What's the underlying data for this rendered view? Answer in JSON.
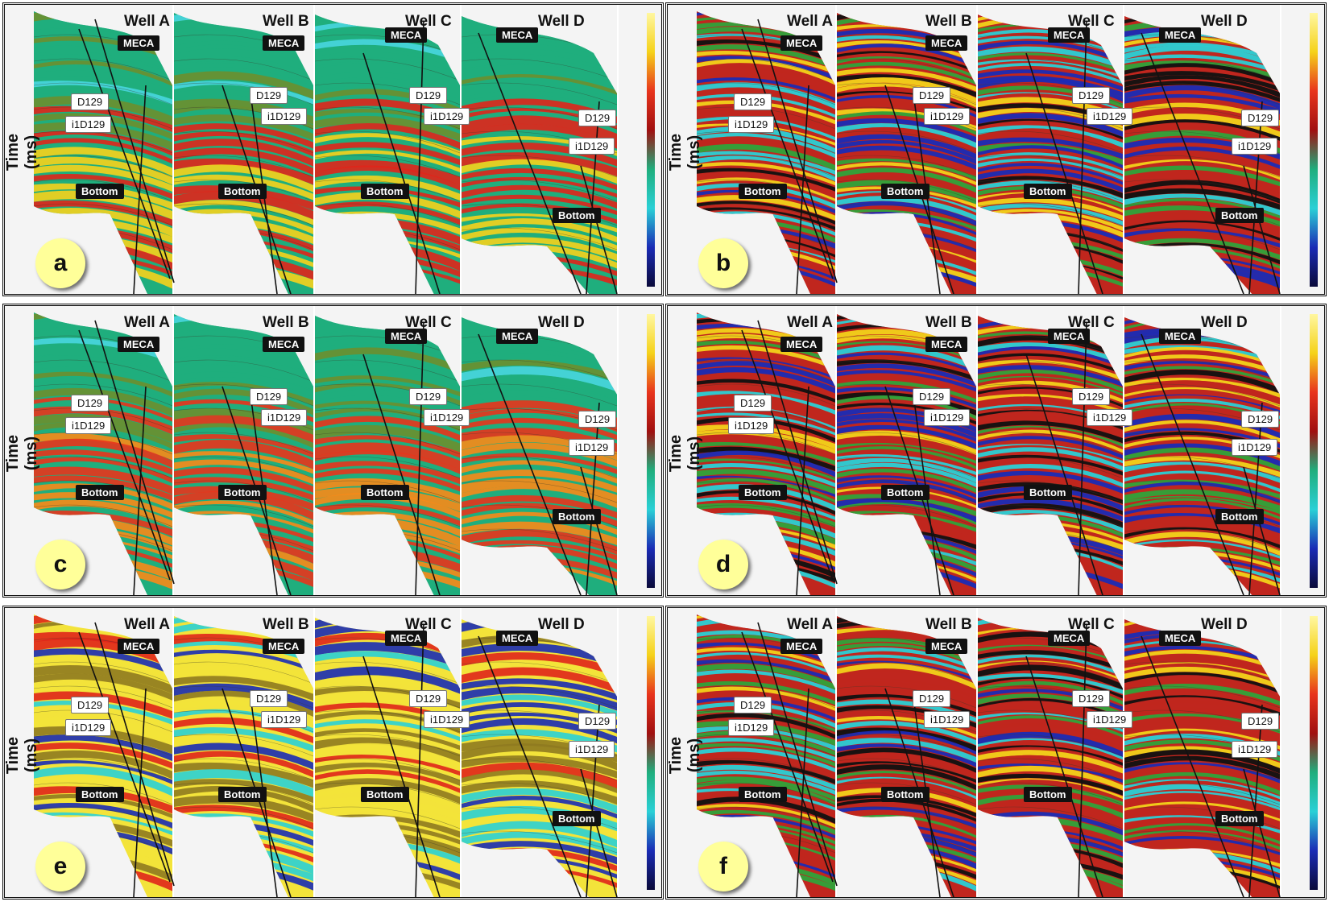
{
  "figure": {
    "y_axis_label": "Time (ms)",
    "wells": [
      "Well A",
      "Well B",
      "Well C",
      "Well D"
    ],
    "horizons": {
      "top": "MECA",
      "upper": "D129",
      "lower": "i1D129",
      "base": "Bottom"
    },
    "panels": [
      {
        "letter": "a",
        "palette": [
          "#1fae7d",
          "#6b8f2f",
          "#e0251b",
          "#f6d21c",
          "#48d6df"
        ],
        "style": "smooth"
      },
      {
        "letter": "b",
        "palette": [
          "#c0261e",
          "#2fa33a",
          "#f2d21a",
          "#2ad0d6",
          "#1a2bb5",
          "#111111"
        ],
        "style": "striped"
      },
      {
        "letter": "c",
        "palette": [
          "#1fae7d",
          "#6b8f2f",
          "#e8341c",
          "#f88a18",
          "#48d6df"
        ],
        "style": "smooth"
      },
      {
        "letter": "d",
        "palette": [
          "#c0261e",
          "#2fa33a",
          "#f2d21a",
          "#2ad0d6",
          "#1a2bb5",
          "#111111"
        ],
        "style": "striped"
      },
      {
        "letter": "e",
        "palette": [
          "#f3e33a",
          "#8f7a20",
          "#e0251b",
          "#2ad0d6",
          "#1a2bb5"
        ],
        "style": "yellow"
      },
      {
        "letter": "f",
        "palette": [
          "#c0261e",
          "#2fa33a",
          "#f2d21a",
          "#2ad0d6",
          "#1a2bb5",
          "#111111"
        ],
        "style": "striped"
      }
    ]
  }
}
